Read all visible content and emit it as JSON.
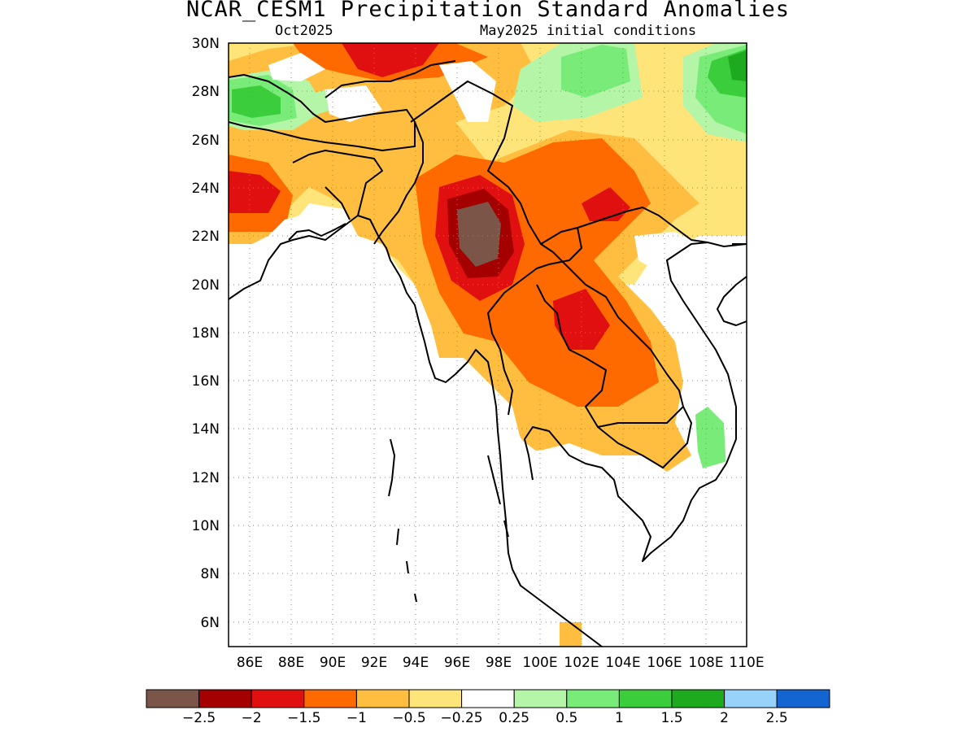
{
  "title": "NCAR_CESM1 Precipitation Standard Anomalies",
  "subtitle_left": "Oct2025",
  "subtitle_right": "May2025 initial conditions",
  "map": {
    "lon_range": [
      85,
      110
    ],
    "lat_range": [
      5,
      30
    ],
    "lon_ticks": [
      "86E",
      "88E",
      "90E",
      "92E",
      "94E",
      "96E",
      "98E",
      "100E",
      "102E",
      "104E",
      "106E",
      "108E",
      "110E"
    ],
    "lat_ticks": [
      "30N",
      "28N",
      "26N",
      "24N",
      "22N",
      "20N",
      "18N",
      "16N",
      "14N",
      "12N",
      "10N",
      "8N",
      "6N"
    ],
    "grid": "dotted"
  },
  "colorbar": {
    "colors": [
      "#7b5548",
      "#a50000",
      "#e01010",
      "#ff6a00",
      "#ffbe40",
      "#ffe47a",
      "#ffffff",
      "#b4f5a8",
      "#78eb78",
      "#3ccd3c",
      "#1eaa1e",
      "#96d2fa",
      "#1464d2"
    ],
    "labels": [
      "−2.5",
      "−2",
      "−1.5",
      "−1",
      "−0.5",
      "−0.25",
      "0.25",
      "0.5",
      "1",
      "1.5",
      "2",
      "2.5"
    ]
  },
  "anomaly_regions": [
    {
      "name": "north-orange-band",
      "value": -1,
      "color": "#ff6a00"
    },
    {
      "name": "myanmar-core",
      "value": -2.5,
      "color": "#7b5548"
    },
    {
      "name": "laos-red",
      "value": -1.5,
      "color": "#e01010"
    },
    {
      "name": "nepal-green",
      "value": 1.5,
      "color": "#3ccd3c"
    },
    {
      "name": "south-china-green",
      "value": 1.5,
      "color": "#3ccd3c"
    },
    {
      "name": "vietnam-green",
      "value": 0.5,
      "color": "#78eb78"
    }
  ]
}
